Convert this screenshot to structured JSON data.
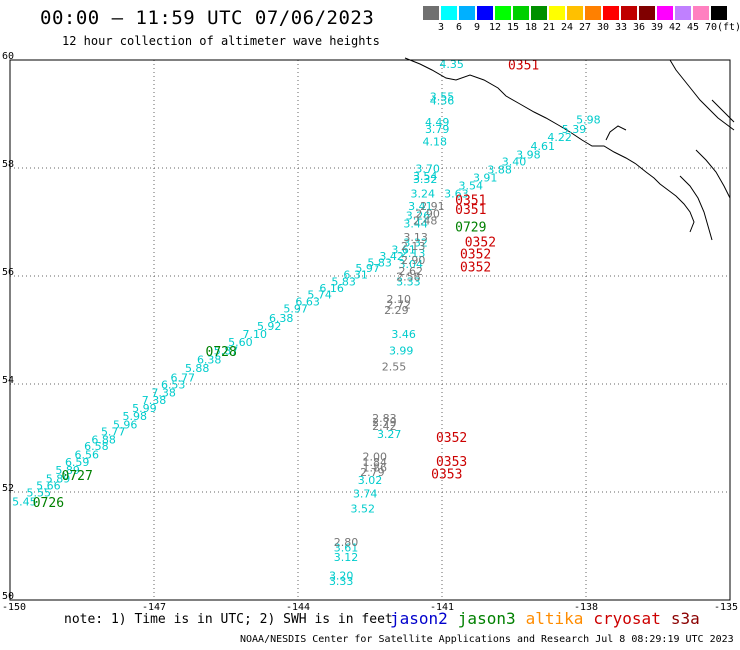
{
  "title": "00:00 – 11:59 UTC 07/06/2023",
  "subtitle": "12 hour collection of altimeter wave heights",
  "colorbar": {
    "colors": [
      "#707070",
      "#00ffff",
      "#00b0ff",
      "#0000ff",
      "#00ff00",
      "#00d000",
      "#009000",
      "#ffff00",
      "#ffc000",
      "#ff8000",
      "#ff0000",
      "#c00000",
      "#800000",
      "#ff00ff",
      "#c080ff",
      "#ff80c0",
      "#000000"
    ],
    "labels": [
      "3",
      "6",
      "9",
      "12",
      "15",
      "18",
      "21",
      "24",
      "27",
      "30",
      "33",
      "36",
      "39",
      "42",
      "45",
      "70"
    ],
    "unit": "(ft)"
  },
  "map": {
    "lon_range": [
      -150,
      -135
    ],
    "lat_range": [
      50,
      60
    ],
    "lon_ticks": [
      "-150",
      "-147",
      "-144",
      "-141",
      "-138",
      "-135"
    ],
    "lat_ticks": [
      "60",
      "58",
      "56",
      "54",
      "52",
      "50"
    ],
    "grid": "dotted"
  },
  "satellite_colors": {
    "jason2": "#0000cc",
    "jason3": "#008000",
    "altika": "#ff8c00",
    "cryosat": "#cc0000",
    "s3a": "#8b0000",
    "swh": "#00cccc",
    "grey": "#777777"
  },
  "tracks": [
    {
      "color": "swh",
      "points": [
        {
          "lon": -149.7,
          "lat": 51.75,
          "v": "5.45"
        },
        {
          "lon": -149.4,
          "lat": 51.92,
          "v": "5.55"
        },
        {
          "lon": -149.2,
          "lat": 52.05,
          "v": "5.66"
        },
        {
          "lon": -149.0,
          "lat": 52.18,
          "v": "5.89"
        },
        {
          "lon": -148.8,
          "lat": 52.33,
          "v": "5.89"
        },
        {
          "lon": -148.6,
          "lat": 52.48,
          "v": "6.59"
        },
        {
          "lon": -148.4,
          "lat": 52.62,
          "v": "6.56"
        },
        {
          "lon": -148.2,
          "lat": 52.78,
          "v": "6.58"
        },
        {
          "lon": -148.05,
          "lat": 52.9,
          "v": "6.88"
        },
        {
          "lon": -147.85,
          "lat": 53.05,
          "v": "5.77"
        },
        {
          "lon": -147.6,
          "lat": 53.18,
          "v": "5.96"
        },
        {
          "lon": -147.4,
          "lat": 53.33,
          "v": "5.98"
        },
        {
          "lon": -147.2,
          "lat": 53.48,
          "v": "5.99"
        },
        {
          "lon": -147.0,
          "lat": 53.63,
          "v": "7.38"
        },
        {
          "lon": -146.8,
          "lat": 53.77,
          "v": "7.38"
        },
        {
          "lon": -146.6,
          "lat": 53.92,
          "v": "6.53"
        },
        {
          "lon": -146.4,
          "lat": 54.05,
          "v": "6.77"
        },
        {
          "lon": -146.1,
          "lat": 54.22,
          "v": "5.88"
        },
        {
          "lon": -145.85,
          "lat": 54.38,
          "v": "6.38"
        },
        {
          "lon": -145.5,
          "lat": 54.55,
          "v": "5.87"
        },
        {
          "lon": -145.2,
          "lat": 54.7,
          "v": "5.60"
        },
        {
          "lon": -144.9,
          "lat": 54.85,
          "v": "7.10"
        },
        {
          "lon": -144.6,
          "lat": 55.0,
          "v": "5.92"
        },
        {
          "lon": -144.35,
          "lat": 55.15,
          "v": "6.38"
        },
        {
          "lon": -144.05,
          "lat": 55.32,
          "v": "5.97"
        },
        {
          "lon": -143.8,
          "lat": 55.45,
          "v": "6.63"
        },
        {
          "lon": -143.55,
          "lat": 55.58,
          "v": "5.74"
        },
        {
          "lon": -143.3,
          "lat": 55.7,
          "v": "6.16"
        },
        {
          "lon": -143.05,
          "lat": 55.82,
          "v": "5.83"
        },
        {
          "lon": -142.8,
          "lat": 55.95,
          "v": "6.31"
        },
        {
          "lon": -142.55,
          "lat": 56.07,
          "v": "5.97"
        },
        {
          "lon": -142.3,
          "lat": 56.18,
          "v": "5.83"
        },
        {
          "lon": -142.05,
          "lat": 56.3,
          "v": "3.42"
        },
        {
          "lon": -141.8,
          "lat": 56.42,
          "v": "3.61"
        },
        {
          "lon": -141.55,
          "lat": 56.55,
          "v": "3.32"
        },
        {
          "lon": -140.7,
          "lat": 57.45,
          "v": "3.63"
        },
        {
          "lon": -140.4,
          "lat": 57.6,
          "v": "3.54"
        },
        {
          "lon": -140.1,
          "lat": 57.75,
          "v": "3.91"
        },
        {
          "lon": -139.8,
          "lat": 57.9,
          "v": "3.88"
        },
        {
          "lon": -139.5,
          "lat": 58.05,
          "v": "3.40"
        },
        {
          "lon": -139.2,
          "lat": 58.18,
          "v": "3.98"
        },
        {
          "lon": -138.9,
          "lat": 58.33,
          "v": "4.61"
        },
        {
          "lon": -138.55,
          "lat": 58.5,
          "v": "4.22"
        },
        {
          "lon": -138.25,
          "lat": 58.65,
          "v": "5.39"
        },
        {
          "lon": -137.95,
          "lat": 58.82,
          "v": "5.98"
        }
      ]
    },
    {
      "color": "swh",
      "points": [
        {
          "lon": -140.8,
          "lat": 59.85,
          "v": "4.35"
        },
        {
          "lon": -141.0,
          "lat": 59.25,
          "v": "3.55"
        },
        {
          "lon": -141.0,
          "lat": 59.18,
          "v": "4.36"
        },
        {
          "lon": -141.1,
          "lat": 58.78,
          "v": "4.49"
        },
        {
          "lon": -141.1,
          "lat": 58.65,
          "v": "3.79"
        },
        {
          "lon": -141.15,
          "lat": 58.42,
          "v": "4.18"
        },
        {
          "lon": -141.3,
          "lat": 57.92,
          "v": "3.70"
        },
        {
          "lon": -141.35,
          "lat": 57.78,
          "v": "3.54"
        },
        {
          "lon": -141.35,
          "lat": 57.72,
          "v": "3.32"
        },
        {
          "lon": -141.4,
          "lat": 57.45,
          "v": "3.24"
        },
        {
          "lon": -141.45,
          "lat": 57.22,
          "v": "3.41"
        },
        {
          "lon": -141.5,
          "lat": 57.05,
          "v": "3.26"
        },
        {
          "lon": -141.55,
          "lat": 56.9,
          "v": "3.44"
        },
        {
          "lon": -141.6,
          "lat": 56.35,
          "v": "2.13"
        },
        {
          "lon": -141.65,
          "lat": 56.15,
          "v": "3.04"
        },
        {
          "lon": -141.7,
          "lat": 55.82,
          "v": "3.33"
        },
        {
          "lon": -141.8,
          "lat": 54.85,
          "v": "3.46"
        },
        {
          "lon": -141.85,
          "lat": 54.55,
          "v": "3.99"
        },
        {
          "lon": -142.1,
          "lat": 53.0,
          "v": "3.27"
        },
        {
          "lon": -142.5,
          "lat": 52.15,
          "v": "3.02"
        },
        {
          "lon": -142.6,
          "lat": 51.9,
          "v": "3.74"
        },
        {
          "lon": -142.65,
          "lat": 51.62,
          "v": "3.52"
        },
        {
          "lon": -143.0,
          "lat": 50.9,
          "v": "3.61"
        },
        {
          "lon": -143.0,
          "lat": 50.72,
          "v": "3.12"
        },
        {
          "lon": -143.1,
          "lat": 50.38,
          "v": "3.20"
        },
        {
          "lon": -143.1,
          "lat": 50.28,
          "v": "3.33"
        }
      ]
    },
    {
      "color": "grey",
      "points": [
        {
          "lon": -141.2,
          "lat": 57.22,
          "v": "2.91"
        },
        {
          "lon": -141.3,
          "lat": 57.08,
          "v": "2.90"
        },
        {
          "lon": -141.35,
          "lat": 56.95,
          "v": "2.48"
        },
        {
          "lon": -141.55,
          "lat": 56.65,
          "v": "3.13"
        },
        {
          "lon": -141.6,
          "lat": 56.48,
          "v": "2.13"
        },
        {
          "lon": -141.6,
          "lat": 56.22,
          "v": "2.90"
        },
        {
          "lon": -141.65,
          "lat": 56.02,
          "v": "2.62"
        },
        {
          "lon": -141.7,
          "lat": 55.92,
          "v": "2.58"
        },
        {
          "lon": -141.9,
          "lat": 55.5,
          "v": "2.10"
        },
        {
          "lon": -141.9,
          "lat": 55.4,
          "v": "2.72"
        },
        {
          "lon": -141.95,
          "lat": 55.3,
          "v": "2.29"
        },
        {
          "lon": -142.0,
          "lat": 54.25,
          "v": "2.55"
        },
        {
          "lon": -142.2,
          "lat": 53.3,
          "v": "2.83"
        },
        {
          "lon": -142.2,
          "lat": 53.22,
          "v": "2.79"
        },
        {
          "lon": -142.2,
          "lat": 53.15,
          "v": "2.42"
        },
        {
          "lon": -142.4,
          "lat": 52.58,
          "v": "2.00"
        },
        {
          "lon": -142.4,
          "lat": 52.48,
          "v": "1.84"
        },
        {
          "lon": -142.4,
          "lat": 52.38,
          "v": "1.86"
        },
        {
          "lon": -142.45,
          "lat": 52.3,
          "v": "2.79"
        },
        {
          "lon": -143.0,
          "lat": 51.0,
          "v": "2.80"
        }
      ]
    }
  ],
  "time_labels": [
    {
      "lon": -149.2,
      "lat": 51.72,
      "text": "0726",
      "color": "jason3"
    },
    {
      "lon": -148.6,
      "lat": 52.22,
      "text": "0727",
      "color": "jason3"
    },
    {
      "lon": -145.6,
      "lat": 54.52,
      "text": "0728",
      "color": "jason3"
    },
    {
      "lon": -140.4,
      "lat": 56.82,
      "text": "0729",
      "color": "jason3"
    },
    {
      "lon": -139.3,
      "lat": 59.82,
      "text": "0351",
      "color": "cryosat"
    },
    {
      "lon": -140.4,
      "lat": 57.32,
      "text": "0351",
      "color": "cryosat"
    },
    {
      "lon": -140.4,
      "lat": 57.15,
      "text": "0351",
      "color": "cryosat"
    },
    {
      "lon": -140.2,
      "lat": 56.55,
      "text": "0352",
      "color": "cryosat"
    },
    {
      "lon": -140.3,
      "lat": 56.32,
      "text": "0352",
      "color": "cryosat"
    },
    {
      "lon": -140.3,
      "lat": 56.08,
      "text": "0352",
      "color": "cryosat"
    },
    {
      "lon": -140.8,
      "lat": 52.93,
      "text": "0352",
      "color": "cryosat"
    },
    {
      "lon": -140.8,
      "lat": 52.48,
      "text": "0353",
      "color": "cryosat"
    },
    {
      "lon": -140.9,
      "lat": 52.25,
      "text": "0353",
      "color": "cryosat"
    }
  ],
  "note": "note: 1) Time is in UTC; 2) SWH is in feet",
  "legend": [
    {
      "name": "jason2",
      "color": "jason2"
    },
    {
      "name": "jason3",
      "color": "jason3"
    },
    {
      "name": "altika",
      "color": "altika"
    },
    {
      "name": "cryosat",
      "color": "cryosat"
    },
    {
      "name": "s3a",
      "color": "s3a"
    }
  ],
  "footer": "NOAA/NESDIS Center for Satellite Applications and Research   Jul  8 08:29:19 UTC 2023"
}
